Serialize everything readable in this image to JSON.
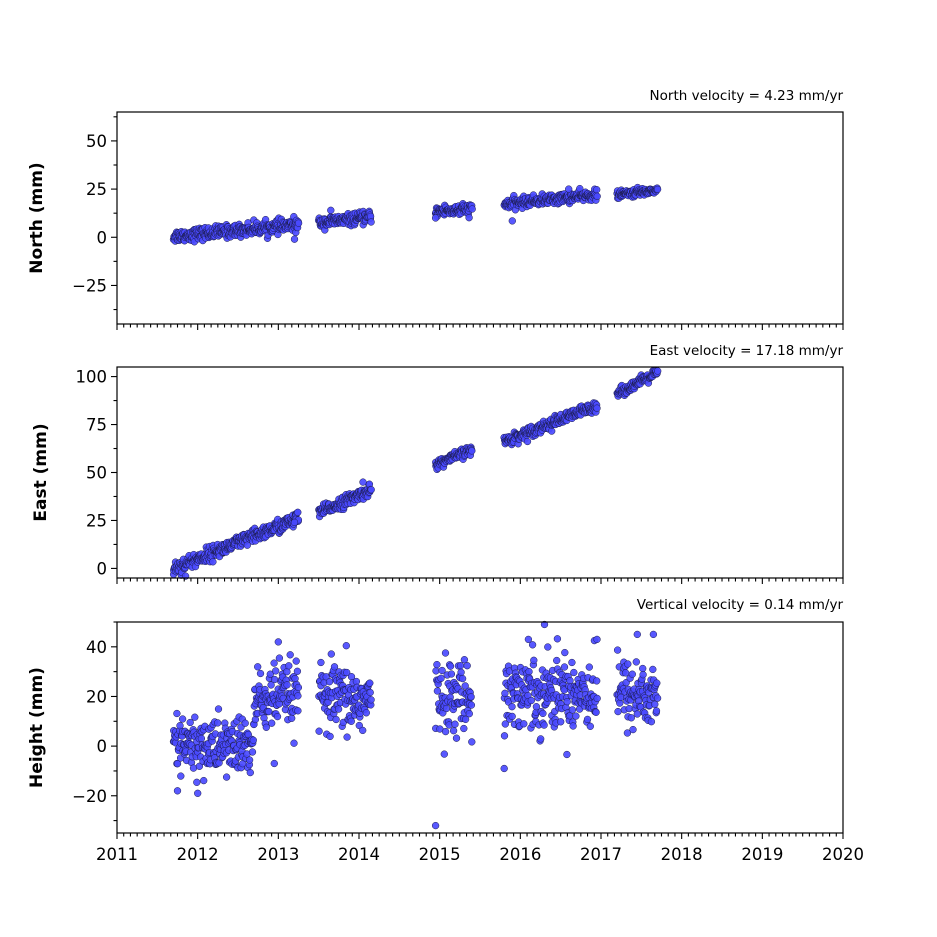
{
  "colors": {
    "marker_fill": "#4a4aff",
    "marker_edge": "#1a1a4a",
    "axes": "#000000"
  },
  "chart_data": [
    {
      "type": "scatter",
      "title": "North velocity = 4.23 mm/yr",
      "xlabel": "",
      "ylabel": "North (mm)",
      "xlim": [
        2011,
        2020
      ],
      "ylim": [
        -45,
        65
      ],
      "yticks": [
        "50",
        "25",
        "0",
        "−25"
      ],
      "ytick_values": [
        50,
        25,
        0,
        -25
      ],
      "grid": false,
      "clusters": [
        {
          "x_start": 2011.7,
          "x_end": 2013.25,
          "y_start": 0.5,
          "y_end": 6.5,
          "scatter": 1.6
        },
        {
          "x_start": 2013.5,
          "x_end": 2014.15,
          "y_start": 7.5,
          "y_end": 10.5,
          "scatter": 1.4
        },
        {
          "x_start": 2014.95,
          "x_end": 2015.4,
          "y_start": 13.5,
          "y_end": 14.5,
          "scatter": 1.5
        },
        {
          "x_start": 2015.8,
          "x_end": 2016.2,
          "y_start": 17,
          "y_end": 19,
          "scatter": 1.3
        },
        {
          "x_start": 2016.2,
          "x_end": 2016.95,
          "y_start": 19,
          "y_end": 22,
          "scatter": 1.3
        },
        {
          "x_start": 2017.2,
          "x_end": 2017.7,
          "y_start": 22,
          "y_end": 24.5,
          "scatter": 1.0
        }
      ],
      "outliers": [
        {
          "x": 2013.2,
          "y": -1.0
        },
        {
          "x": 2013.65,
          "y": 14.0
        },
        {
          "x": 2014.95,
          "y": 10.0
        },
        {
          "x": 2015.9,
          "y": 8.5
        },
        {
          "x": 2016.6,
          "y": 25.0
        }
      ]
    },
    {
      "type": "scatter",
      "title": "East velocity = 17.18 mm/yr",
      "xlabel": "",
      "ylabel": "East (mm)",
      "xlim": [
        2011,
        2020
      ],
      "ylim": [
        -5,
        105
      ],
      "yticks": [
        "100",
        "75",
        "50",
        "25",
        "0"
      ],
      "ytick_values": [
        100,
        75,
        50,
        25,
        0
      ],
      "grid": false,
      "clusters": [
        {
          "x_start": 2011.7,
          "x_end": 2013.25,
          "y_start": 0,
          "y_end": 26,
          "scatter": 1.8
        },
        {
          "x_start": 2013.5,
          "x_end": 2014.15,
          "y_start": 29,
          "y_end": 41,
          "scatter": 1.5
        },
        {
          "x_start": 2014.95,
          "x_end": 2015.4,
          "y_start": 54,
          "y_end": 62,
          "scatter": 1.2
        },
        {
          "x_start": 2015.8,
          "x_end": 2016.95,
          "y_start": 66,
          "y_end": 85,
          "scatter": 1.4
        },
        {
          "x_start": 2017.2,
          "x_end": 2017.7,
          "y_start": 91,
          "y_end": 102,
          "scatter": 1.2
        }
      ],
      "outliers": [
        {
          "x": 2011.85,
          "y": -4
        },
        {
          "x": 2013.2,
          "y": 24.0
        },
        {
          "x": 2014.05,
          "y": 45.0
        }
      ]
    },
    {
      "type": "scatter",
      "title": "Vertical velocity = 0.14 mm/yr",
      "xlabel": "",
      "ylabel": "Height (mm)",
      "xlim": [
        2011,
        2020
      ],
      "ylim": [
        -35,
        50
      ],
      "yticks": [
        "40",
        "20",
        "0",
        "−20"
      ],
      "ytick_values": [
        40,
        20,
        0,
        -20
      ],
      "grid": false,
      "clusters": [
        {
          "x_start": 2011.7,
          "x_end": 2012.7,
          "y_start": 0,
          "y_end": 0,
          "scatter": 6.0
        },
        {
          "x_start": 2012.7,
          "x_end": 2013.25,
          "y_start": 18,
          "y_end": 21,
          "scatter": 6.5
        },
        {
          "x_start": 2013.5,
          "x_end": 2014.15,
          "y_start": 19,
          "y_end": 18,
          "scatter": 7.0
        },
        {
          "x_start": 2014.95,
          "x_end": 2015.4,
          "y_start": 20,
          "y_end": 20,
          "scatter": 7.0
        },
        {
          "x_start": 2015.8,
          "x_end": 2016.95,
          "y_start": 22,
          "y_end": 22,
          "scatter": 7.5
        },
        {
          "x_start": 2017.2,
          "x_end": 2017.7,
          "y_start": 22,
          "y_end": 20,
          "scatter": 7.0
        }
      ],
      "outliers": [
        {
          "x": 2014.95,
          "y": -32
        },
        {
          "x": 2015.8,
          "y": -9
        },
        {
          "x": 2016.3,
          "y": 49
        },
        {
          "x": 2016.1,
          "y": 43
        },
        {
          "x": 2017.45,
          "y": 45
        },
        {
          "x": 2017.65,
          "y": 45
        },
        {
          "x": 2013.0,
          "y": 42
        },
        {
          "x": 2012.0,
          "y": -19
        },
        {
          "x": 2011.75,
          "y": -18
        },
        {
          "x": 2012.95,
          "y": -7
        },
        {
          "x": 2016.95,
          "y": 43
        }
      ]
    }
  ],
  "x_axis": {
    "tick_values": [
      2011,
      2012,
      2013,
      2014,
      2015,
      2016,
      2017,
      2018,
      2019,
      2020
    ],
    "tick_labels": [
      "2011",
      "2012",
      "2013",
      "2014",
      "2015",
      "2016",
      "2017",
      "2018",
      "2019",
      "2020"
    ],
    "minor_per_year": 12
  }
}
